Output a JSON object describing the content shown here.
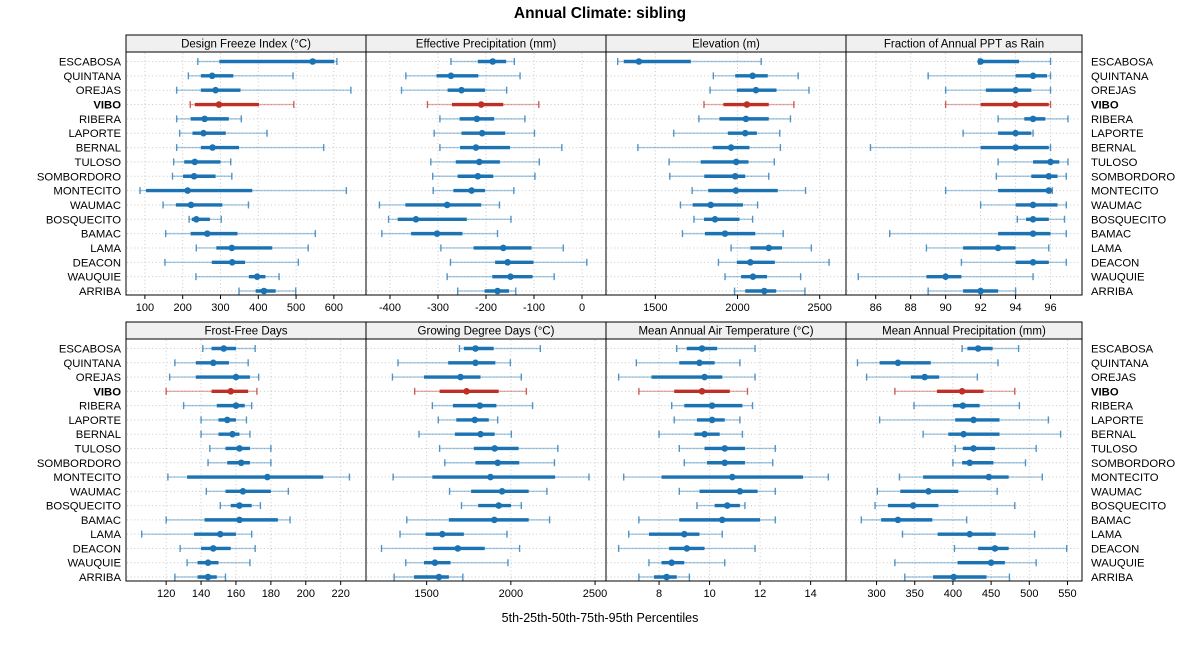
{
  "title": "Annual Climate: sibling",
  "caption": "5th-25th-50th-75th-95th Percentiles",
  "highlight_site": "VIBO",
  "percentile_labels": [
    "5th",
    "25th",
    "50th",
    "75th",
    "95th"
  ],
  "sites": [
    "ESCABOSA",
    "QUINTANA",
    "OREJAS",
    "VIBO",
    "RIBERA",
    "LAPORTE",
    "BERNAL",
    "TULOSO",
    "SOMBORDORO",
    "MONTECITO",
    "WAUMAC",
    "BOSQUECITO",
    "BAMAC",
    "LAMA",
    "DEACON",
    "WAUQUIE",
    "ARRIBA"
  ],
  "colors": {
    "series": "#1B73B3",
    "series_thin": "rgba(27,115,179,0.38)",
    "series_cap": "rgba(27,115,179,0.75)",
    "highlight": "#BE2F26",
    "highlight_thin": "rgba(190,47,38,0.38)",
    "highlight_cap": "rgba(190,47,38,0.75)",
    "strip_bg": "#F0F0F0",
    "grid": "#C8C8C8",
    "border": "#000000",
    "text": "#000000"
  },
  "chart_data": [
    {
      "type": "percentile-interval-dotplot",
      "title": "Design Freeze Index (°C)",
      "grid": {
        "row": 0,
        "col": 0
      },
      "xlim": [
        50,
        685
      ],
      "xticks": [
        100,
        200,
        300,
        400,
        500,
        600
      ],
      "values": [
        [
          240,
          297,
          544,
          601,
          608
        ],
        [
          215,
          248,
          278,
          334,
          492
        ],
        [
          184,
          248,
          287,
          353,
          645
        ],
        [
          220,
          232,
          296,
          402,
          494
        ],
        [
          184,
          221,
          258,
          322,
          355
        ],
        [
          192,
          226,
          255,
          314,
          423
        ],
        [
          184,
          248,
          279,
          349,
          573
        ],
        [
          176,
          204,
          232,
          300,
          327
        ],
        [
          173,
          201,
          230,
          287,
          330
        ],
        [
          87,
          103,
          213,
          384,
          633
        ],
        [
          148,
          182,
          222,
          305,
          374
        ],
        [
          217,
          224,
          236,
          272,
          302
        ],
        [
          155,
          221,
          265,
          345,
          551
        ],
        [
          236,
          289,
          330,
          437,
          532
        ],
        [
          153,
          277,
          331,
          365,
          506
        ],
        [
          235,
          375,
          397,
          419,
          455
        ],
        [
          349,
          393,
          415,
          446,
          499
        ]
      ]
    },
    {
      "type": "percentile-interval-dotplot",
      "title": "Effective Precipitation (mm)",
      "grid": {
        "row": 0,
        "col": 1
      },
      "xlim": [
        -450,
        50
      ],
      "xticks": [
        -400,
        -300,
        -200,
        -100,
        0
      ],
      "values": [
        [
          -273,
          -217,
          -186,
          -158,
          -141
        ],
        [
          -367,
          -303,
          -273,
          -216,
          -129
        ],
        [
          -376,
          -280,
          -251,
          -202,
          -157
        ],
        [
          -322,
          -271,
          -210,
          -164,
          -90
        ],
        [
          -296,
          -255,
          -219,
          -183,
          -119
        ],
        [
          -308,
          -251,
          -208,
          -160,
          -99
        ],
        [
          -296,
          -254,
          -221,
          -150,
          -42
        ],
        [
          -315,
          -263,
          -214,
          -171,
          -89
        ],
        [
          -311,
          -259,
          -217,
          -185,
          -98
        ],
        [
          -310,
          -268,
          -230,
          -202,
          -142
        ],
        [
          -422,
          -368,
          -281,
          -210,
          -172
        ],
        [
          -403,
          -384,
          -346,
          -240,
          -148
        ],
        [
          -417,
          -356,
          -302,
          -249,
          -176
        ],
        [
          -294,
          -226,
          -164,
          -105,
          -39
        ],
        [
          -274,
          -181,
          -155,
          -101,
          10
        ],
        [
          -281,
          -187,
          -149,
          -103,
          -58
        ],
        [
          -259,
          -203,
          -176,
          -152,
          -138
        ]
      ]
    },
    {
      "type": "percentile-interval-dotplot",
      "title": "Elevation (m)",
      "grid": {
        "row": 0,
        "col": 2
      },
      "xlim": [
        1200,
        2660
      ],
      "xticks": [
        1500,
        2000,
        2500
      ],
      "values": [
        [
          1271,
          1308,
          1400,
          1716,
          2144
        ],
        [
          1853,
          1986,
          2092,
          2184,
          2369
        ],
        [
          1833,
          1996,
          2112,
          2237,
          2435
        ],
        [
          1796,
          1914,
          2057,
          2190,
          2343
        ],
        [
          1765,
          1890,
          2051,
          2190,
          2322
        ],
        [
          1612,
          1941,
          2047,
          2118,
          2257
        ],
        [
          1394,
          1849,
          1961,
          2073,
          2261
        ],
        [
          1584,
          1776,
          1992,
          2067,
          2224
        ],
        [
          1588,
          1798,
          1986,
          2047,
          2190
        ],
        [
          1724,
          1822,
          1990,
          2245,
          2414
        ],
        [
          1653,
          1727,
          1837,
          2033,
          2122
        ],
        [
          1735,
          1796,
          1863,
          2012,
          2092
        ],
        [
          1665,
          1802,
          1924,
          2108,
          2278
        ],
        [
          1961,
          2078,
          2190,
          2271,
          2449
        ],
        [
          1884,
          1996,
          2078,
          2227,
          2557
        ],
        [
          1924,
          2022,
          2094,
          2180,
          2384
        ],
        [
          1982,
          2047,
          2163,
          2235,
          2410
        ]
      ]
    },
    {
      "type": "percentile-interval-dotplot",
      "title": "Fraction of Annual PPT as Rain",
      "grid": {
        "row": 0,
        "col": 3
      },
      "xlim": [
        84.3,
        97.8
      ],
      "xticks": [
        86,
        88,
        90,
        92,
        94,
        96
      ],
      "values": [
        [
          91.9,
          92,
          92,
          94.2,
          96
        ],
        [
          89,
          94,
          95,
          95.8,
          96
        ],
        [
          90,
          92.3,
          94,
          94.9,
          96
        ],
        [
          90,
          92,
          94,
          95.9,
          96
        ],
        [
          93,
          94.5,
          95,
          95.7,
          97
        ],
        [
          91,
          93,
          94,
          94.9,
          95
        ],
        [
          85.7,
          92,
          94,
          95.9,
          96
        ],
        [
          93,
          95,
          96,
          96.5,
          97
        ],
        [
          92.9,
          94.9,
          95.9,
          96.4,
          96.9
        ],
        [
          90,
          93,
          95.9,
          96,
          96.1
        ],
        [
          92,
          94,
          95,
          96.4,
          96.9
        ],
        [
          94.1,
          94.6,
          95,
          95.9,
          96.8
        ],
        [
          86.8,
          93,
          95,
          96,
          96.9
        ],
        [
          88.9,
          91,
          93,
          94,
          95.9
        ],
        [
          90.9,
          94,
          95,
          95.9,
          96.9
        ],
        [
          85,
          88.9,
          90,
          90.9,
          95
        ],
        [
          89,
          91,
          92,
          93,
          94
        ]
      ]
    },
    {
      "type": "percentile-interval-dotplot",
      "title": "Frost-Free Days",
      "grid": {
        "row": 1,
        "col": 0
      },
      "xlim": [
        97,
        234.5
      ],
      "xticks": [
        120,
        140,
        160,
        180,
        200,
        220
      ],
      "values": [
        [
          141,
          146,
          153,
          160,
          171
        ],
        [
          125,
          137,
          147,
          156,
          167
        ],
        [
          122,
          137,
          160,
          168,
          173
        ],
        [
          120,
          146,
          157,
          167,
          172
        ],
        [
          130,
          149,
          160,
          165,
          169
        ],
        [
          140,
          150,
          155,
          160,
          166
        ],
        [
          140,
          150,
          158,
          162,
          168
        ],
        [
          145,
          154,
          162,
          168,
          180
        ],
        [
          144,
          155,
          163,
          168,
          180
        ],
        [
          121,
          132,
          178,
          210,
          225
        ],
        [
          143,
          154,
          164,
          180,
          190
        ],
        [
          151,
          157,
          162,
          169,
          174
        ],
        [
          120,
          142,
          162,
          184,
          191
        ],
        [
          106,
          136,
          151,
          160,
          169
        ],
        [
          128,
          140,
          147,
          157,
          171
        ],
        [
          132,
          138,
          144,
          150,
          168
        ],
        [
          125,
          138,
          144,
          149,
          154
        ]
      ]
    },
    {
      "type": "percentile-interval-dotplot",
      "title": "Growing Degree Days (°C)",
      "grid": {
        "row": 1,
        "col": 1
      },
      "xlim": [
        1140,
        2565
      ],
      "xticks": [
        1500,
        2000,
        2500
      ],
      "values": [
        [
          1695,
          1721,
          1790,
          1898,
          2175
        ],
        [
          1330,
          1628,
          1790,
          1908,
          1997
        ],
        [
          1297,
          1484,
          1701,
          1820,
          2062
        ],
        [
          1429,
          1577,
          1737,
          1928,
          2092
        ],
        [
          1534,
          1656,
          1816,
          1914,
          2129
        ],
        [
          1569,
          1676,
          1786,
          1869,
          1922
        ],
        [
          1455,
          1668,
          1820,
          1904,
          2003
        ],
        [
          1577,
          1780,
          1904,
          2046,
          2279
        ],
        [
          1608,
          1790,
          1922,
          2050,
          2259
        ],
        [
          1301,
          1534,
          1879,
          2263,
          2464
        ],
        [
          1636,
          1764,
          1948,
          2106,
          2214
        ],
        [
          1707,
          1806,
          1928,
          2001,
          2062
        ],
        [
          1382,
          1632,
          1902,
          2106,
          2230
        ],
        [
          1342,
          1494,
          1593,
          1721,
          1977
        ],
        [
          1232,
          1539,
          1685,
          1845,
          2052
        ],
        [
          1376,
          1484,
          1549,
          1642,
          1983
        ],
        [
          1307,
          1425,
          1573,
          1632,
          1715
        ]
      ]
    },
    {
      "type": "percentile-interval-dotplot",
      "title": "Mean Annual Air Temperature (°C)",
      "grid": {
        "row": 1,
        "col": 2
      },
      "xlim": [
        5.9,
        15.4
      ],
      "xticks": [
        8,
        10,
        12,
        14
      ],
      "values": [
        [
          8.7,
          9.1,
          9.7,
          10.3,
          11.8
        ],
        [
          7.1,
          8.8,
          9.6,
          10.2,
          11.2
        ],
        [
          6.4,
          7.7,
          9.8,
          10.5,
          11.8
        ],
        [
          7.2,
          8.6,
          9.7,
          10.8,
          11.5
        ],
        [
          8.5,
          9.0,
          10.1,
          11.3,
          11.7
        ],
        [
          8.6,
          9.5,
          10.1,
          10.6,
          11.2
        ],
        [
          8.0,
          9.4,
          9.8,
          10.4,
          11.3
        ],
        [
          8.8,
          9.8,
          10.6,
          11.4,
          12.6
        ],
        [
          9.0,
          9.9,
          10.6,
          11.4,
          12.5
        ],
        [
          6.6,
          8.1,
          10.9,
          13.7,
          14.7
        ],
        [
          8.8,
          9.6,
          11.2,
          11.9,
          12.6
        ],
        [
          9.5,
          10.2,
          10.7,
          11.2,
          11.4
        ],
        [
          7.2,
          8.8,
          10.5,
          12.0,
          12.6
        ],
        [
          6.8,
          7.6,
          9.0,
          9.6,
          10.5
        ],
        [
          6.4,
          8.4,
          9.1,
          9.8,
          11.8
        ],
        [
          7.6,
          8.1,
          8.5,
          9.0,
          10.6
        ],
        [
          7.2,
          7.8,
          8.3,
          8.7,
          9.2
        ]
      ]
    },
    {
      "type": "percentile-interval-dotplot",
      "title": "Mean Annual Precipitation (mm)",
      "grid": {
        "row": 1,
        "col": 3
      },
      "xlim": [
        260,
        569
      ],
      "xticks": [
        300,
        350,
        400,
        450,
        500,
        550
      ],
      "values": [
        [
          412,
          419,
          433,
          452,
          486
        ],
        [
          275,
          304,
          328,
          371,
          459
        ],
        [
          287,
          345,
          363,
          382,
          432
        ],
        [
          324,
          379,
          412,
          440,
          481
        ],
        [
          349,
          400,
          413,
          435,
          487
        ],
        [
          304,
          403,
          427,
          461,
          525
        ],
        [
          361,
          394,
          414,
          461,
          541
        ],
        [
          403,
          413,
          427,
          455,
          509
        ],
        [
          400,
          412,
          422,
          453,
          495
        ],
        [
          330,
          361,
          447,
          473,
          517
        ],
        [
          301,
          331,
          368,
          407,
          458
        ],
        [
          298,
          315,
          348,
          381,
          481
        ],
        [
          280,
          306,
          328,
          373,
          418
        ],
        [
          334,
          380,
          422,
          456,
          507
        ],
        [
          402,
          433,
          455,
          473,
          549
        ],
        [
          324,
          406,
          450,
          468,
          509
        ],
        [
          337,
          374,
          401,
          444,
          474
        ]
      ]
    }
  ]
}
